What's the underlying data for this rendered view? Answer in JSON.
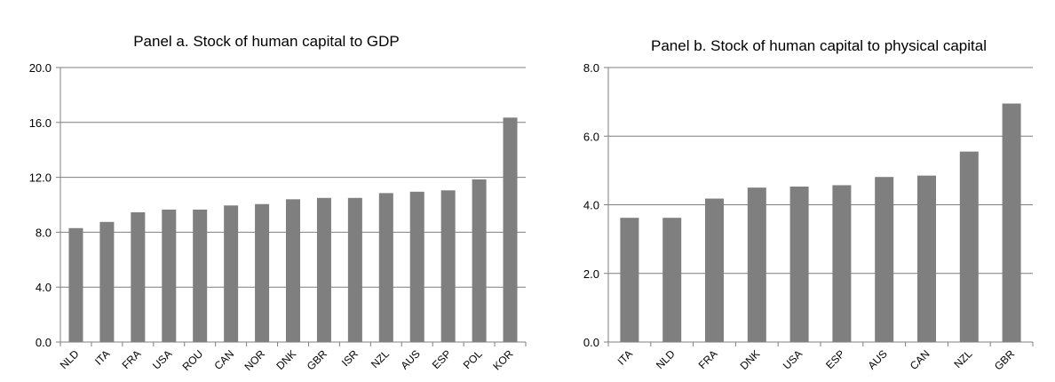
{
  "colors": {
    "bar": "#7f7f7f",
    "grid": "#7f7f7f",
    "axis": "#7f7f7f",
    "text": "#000000"
  },
  "chart_data": [
    {
      "type": "bar",
      "title": "Panel a. Stock of human capital to GDP",
      "xlabel": "",
      "ylabel": "",
      "ylim": [
        0,
        20
      ],
      "yticks": [
        "0.0",
        "4.0",
        "8.0",
        "12.0",
        "16.0",
        "20.0"
      ],
      "grid": true,
      "legend": "none",
      "categories": [
        "NLD",
        "ITA",
        "FRA",
        "USA",
        "ROU",
        "CAN",
        "NOR",
        "DNK",
        "GBR",
        "ISR",
        "NZL",
        "AUS",
        "ESP",
        "POL",
        "KOR"
      ],
      "values": [
        8.3,
        8.75,
        9.45,
        9.65,
        9.65,
        9.95,
        10.05,
        10.4,
        10.5,
        10.5,
        10.85,
        10.95,
        11.05,
        11.85,
        16.35
      ]
    },
    {
      "type": "bar",
      "title": "Panel b. Stock of human capital to physical capital",
      "xlabel": "",
      "ylabel": "",
      "ylim": [
        0,
        8
      ],
      "yticks": [
        "0.0",
        "2.0",
        "4.0",
        "6.0",
        "8.0"
      ],
      "grid": true,
      "legend": "none",
      "categories": [
        "ITA",
        "NLD",
        "FRA",
        "DNK",
        "USA",
        "ESP",
        "AUS",
        "CAN",
        "NZL",
        "GBR"
      ],
      "values": [
        3.62,
        3.62,
        4.18,
        4.5,
        4.53,
        4.57,
        4.81,
        4.85,
        5.55,
        6.95
      ]
    }
  ]
}
